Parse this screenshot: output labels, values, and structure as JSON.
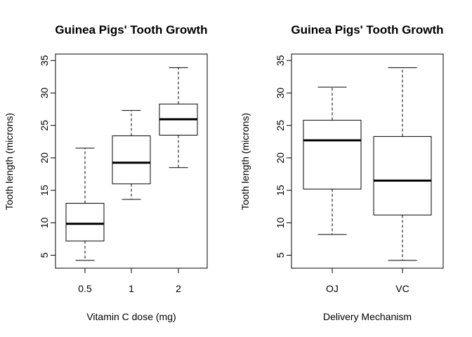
{
  "chart_data": [
    {
      "type": "boxplot",
      "title": "Guinea Pigs' Tooth Growth",
      "xlabel": "Vitamin C dose (mg)",
      "ylabel": "Tooth length (microns)",
      "ylim": [
        3,
        36
      ],
      "yticks": [
        "5",
        "10",
        "15",
        "20",
        "25",
        "30",
        "35"
      ],
      "categories": [
        "0.5",
        "1",
        "2"
      ],
      "boxes": [
        {
          "category": "0.5",
          "whisker_low": 4.2,
          "q1": 7.2,
          "median": 9.85,
          "q3": 13.0,
          "whisker_high": 21.5
        },
        {
          "category": "1",
          "whisker_low": 13.6,
          "q1": 16.0,
          "median": 19.25,
          "q3": 23.4,
          "whisker_high": 27.3
        },
        {
          "category": "2",
          "whisker_low": 18.5,
          "q1": 23.5,
          "median": 25.95,
          "q3": 28.3,
          "whisker_high": 33.9
        }
      ]
    },
    {
      "type": "boxplot",
      "title": "Guinea Pigs' Tooth Growth",
      "xlabel": "Delivery Mechanism",
      "ylabel": "Tooth length (microns)",
      "ylim": [
        3,
        36
      ],
      "yticks": [
        "5",
        "10",
        "15",
        "20",
        "25",
        "30",
        "35"
      ],
      "categories": [
        "OJ",
        "VC"
      ],
      "boxes": [
        {
          "category": "OJ",
          "whisker_low": 8.2,
          "q1": 15.2,
          "median": 22.7,
          "q3": 25.8,
          "whisker_high": 30.9
        },
        {
          "category": "VC",
          "whisker_low": 4.2,
          "q1": 11.2,
          "median": 16.5,
          "q3": 23.3,
          "whisker_high": 33.9
        }
      ]
    }
  ]
}
